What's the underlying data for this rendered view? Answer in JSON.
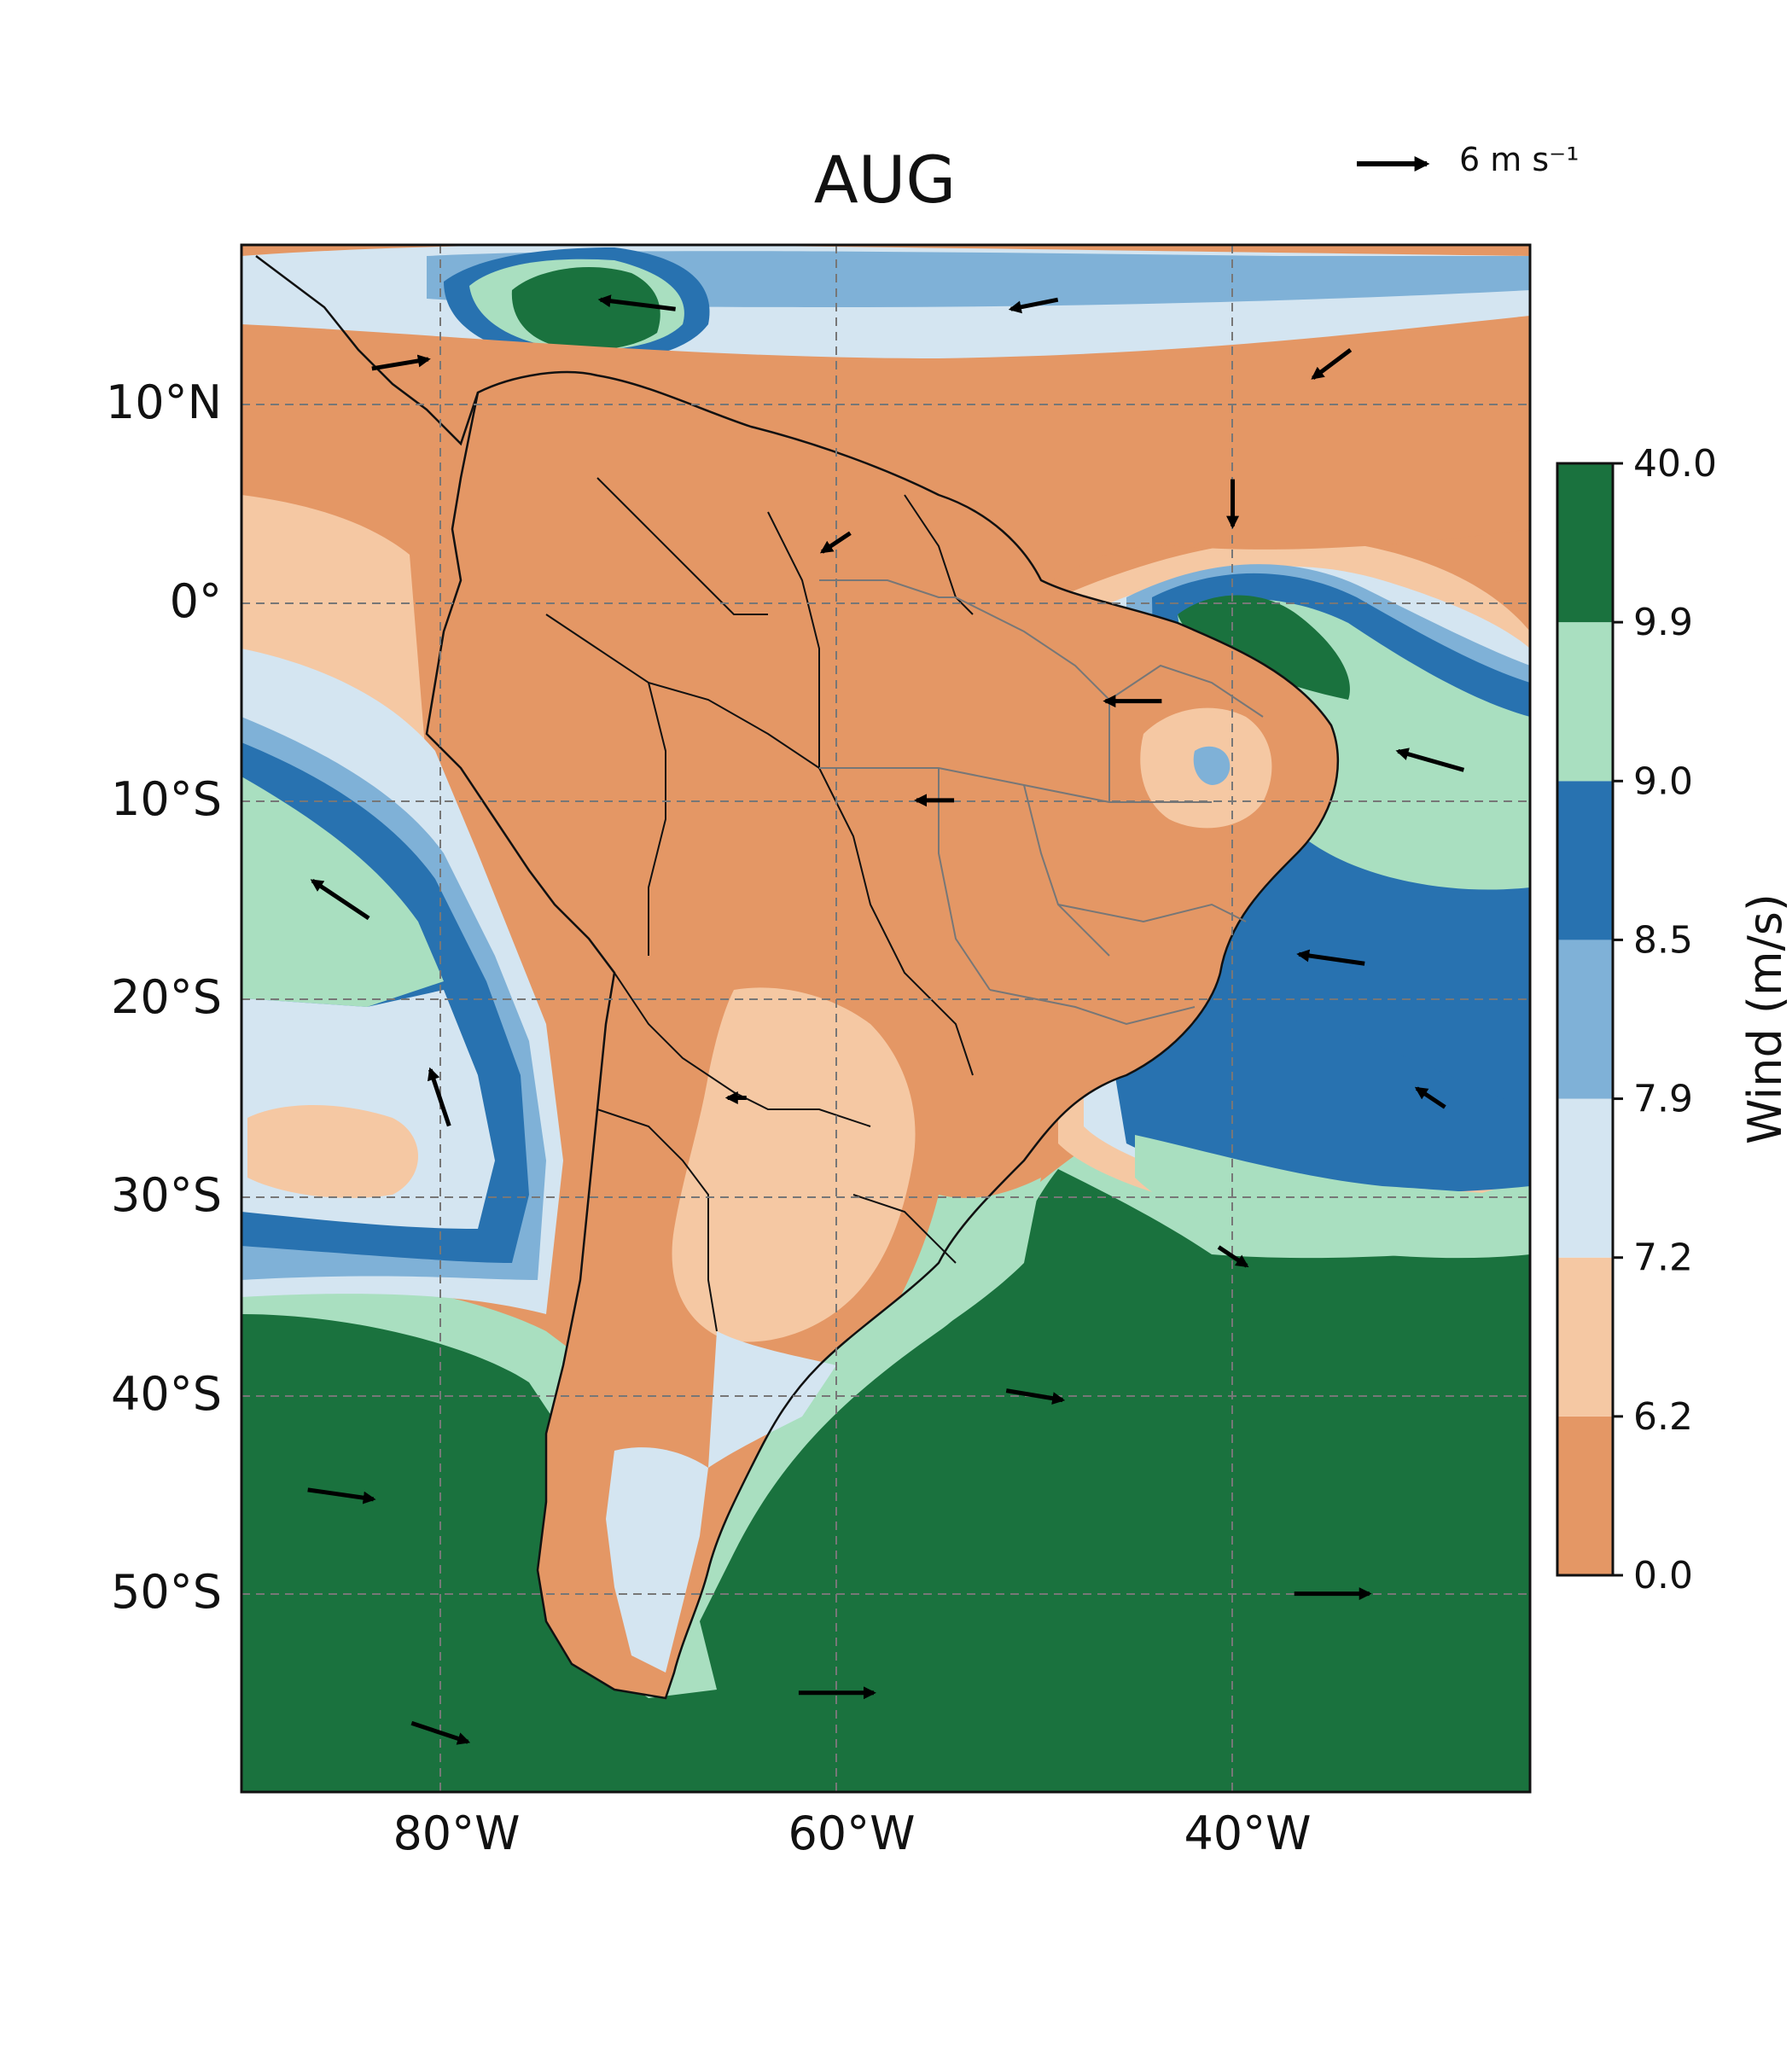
{
  "title": "AUG",
  "reference_vector": {
    "label": "6 m s⁻¹"
  },
  "colorbar": {
    "label": "Wind (m/s)",
    "ticks": [
      "0.0",
      "6.2",
      "7.2",
      "7.9",
      "8.5",
      "9.0",
      "9.9",
      "40.0"
    ],
    "colors": [
      "#e49765",
      "#f5c8a3",
      "#d4e5f1",
      "#7fb1d7",
      "#2872b0",
      "#a9dfc0",
      "#1a723e"
    ]
  },
  "lat_labels": [
    "10°N",
    "0°",
    "10°S",
    "20°S",
    "30°S",
    "40°S",
    "50°S"
  ],
  "lon_labels": [
    "80°W",
    "60°W",
    "40°W"
  ],
  "chart_data": {
    "type": "heatmap",
    "title": "AUG",
    "variable": "Wind (m/s)",
    "levels": [
      0.0,
      6.2,
      7.2,
      7.9,
      8.5,
      9.0,
      9.9,
      40.0
    ],
    "lon_range": [
      -90,
      -25
    ],
    "lat_range": [
      -60,
      18
    ],
    "gridlines": true,
    "vector_reference": "6 m s⁻¹",
    "vectors": [
      {
        "lon": -82,
        "lat": 12,
        "u": 6,
        "v": 1
      },
      {
        "lon": -70,
        "lat": 15,
        "u": -8,
        "v": 1
      },
      {
        "lon": -50,
        "lat": 15,
        "u": -5,
        "v": -1
      },
      {
        "lon": -35,
        "lat": 12,
        "u": -4,
        "v": -3
      },
      {
        "lon": -40,
        "lat": 5,
        "u": 0,
        "v": -5
      },
      {
        "lon": -60,
        "lat": 3,
        "u": -3,
        "v": -2
      },
      {
        "lon": -45,
        "lat": -5,
        "u": -6,
        "v": 0
      },
      {
        "lon": -30,
        "lat": -8,
        "u": -7,
        "v": 2
      },
      {
        "lon": -55,
        "lat": -10,
        "u": -4,
        "v": 0
      },
      {
        "lon": -35,
        "lat": -18,
        "u": -7,
        "v": 1
      },
      {
        "lon": -85,
        "lat": -15,
        "u": -6,
        "v": 4
      },
      {
        "lon": -80,
        "lat": -25,
        "u": -2,
        "v": 6
      },
      {
        "lon": -65,
        "lat": -25,
        "u": -2,
        "v": 0
      },
      {
        "lon": -30,
        "lat": -25,
        "u": -3,
        "v": 2
      },
      {
        "lon": -40,
        "lat": -33,
        "u": 3,
        "v": -2
      },
      {
        "lon": -50,
        "lat": -40,
        "u": 6,
        "v": -1
      },
      {
        "lon": -85,
        "lat": -45,
        "u": 7,
        "v": -1
      },
      {
        "lon": -35,
        "lat": -50,
        "u": 8,
        "v": 0
      },
      {
        "lon": -60,
        "lat": -55,
        "u": 8,
        "v": 0
      },
      {
        "lon": -80,
        "lat": -57,
        "u": 6,
        "v": -2
      }
    ]
  }
}
